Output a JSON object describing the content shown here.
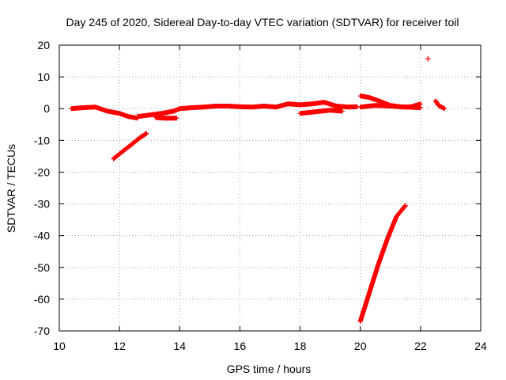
{
  "chart_data": {
    "type": "scatter",
    "title": "Day 245 of 2020, Sidereal Day-to-day VTEC variation (SDTVAR) for receiver toil",
    "xlabel": "GPS time / hours",
    "ylabel": "SDTVAR / TECUs",
    "xlim": [
      10,
      24
    ],
    "ylim": [
      -70,
      20
    ],
    "xticks": [
      "10",
      "12",
      "14",
      "16",
      "18",
      "20",
      "22",
      "24"
    ],
    "yticks": [
      "20",
      "10",
      "0",
      "-10",
      "-20",
      "-30",
      "-40",
      "-50",
      "-60",
      "-70"
    ],
    "grid": true,
    "marker": "+",
    "color": "#ff0000",
    "segments": [
      {
        "x": [
          10.4,
          10.8,
          11.2,
          11.6,
          12.0,
          12.3,
          12.6
        ],
        "y": [
          0.0,
          0.3,
          0.5,
          -0.8,
          -1.5,
          -2.5,
          -3.0
        ]
      },
      {
        "x": [
          12.6,
          13.0,
          13.4,
          13.8,
          14.0,
          14.4,
          14.8,
          15.2,
          15.6,
          16.0,
          16.4,
          16.8,
          17.2,
          17.6,
          18.0,
          18.4,
          18.8,
          19.2,
          19.6,
          19.9
        ],
        "y": [
          -2.5,
          -2.0,
          -1.5,
          -0.8,
          0.0,
          0.3,
          0.5,
          0.8,
          0.8,
          0.6,
          0.5,
          0.8,
          0.5,
          1.5,
          1.2,
          1.5,
          2.0,
          0.8,
          0.5,
          0.6
        ]
      },
      {
        "x": [
          13.2,
          13.5,
          13.9
        ],
        "y": [
          -2.8,
          -3.0,
          -3.0
        ]
      },
      {
        "x": [
          18.0,
          18.5,
          19.0,
          19.4
        ],
        "y": [
          -1.5,
          -1.0,
          -0.5,
          -0.8
        ]
      },
      {
        "x": [
          20.0,
          20.3,
          20.6,
          21.0,
          21.4,
          21.7,
          22.0
        ],
        "y": [
          4.0,
          3.5,
          2.5,
          1.0,
          0.5,
          0.6,
          1.5
        ]
      },
      {
        "x": [
          20.0,
          20.5,
          21.0,
          21.5,
          22.0
        ],
        "y": [
          0.5,
          1.0,
          0.8,
          0.5,
          0.3
        ]
      },
      {
        "x": [
          22.5,
          22.6,
          22.7,
          22.8
        ],
        "y": [
          2.5,
          1.0,
          0.5,
          0.0
        ]
      },
      {
        "x": [
          11.8,
          12.1,
          12.4,
          12.7,
          12.9
        ],
        "y": [
          -15.8,
          -13.5,
          -11.3,
          -9.0,
          -7.8
        ]
      },
      {
        "x": [
          20.0,
          20.3,
          20.6,
          20.9,
          21.2,
          21.5
        ],
        "y": [
          -67.0,
          -58.0,
          -49.0,
          -41.0,
          -34.0,
          -30.5
        ]
      }
    ],
    "points": [
      {
        "x": 22.25,
        "y": 15.7
      }
    ]
  }
}
